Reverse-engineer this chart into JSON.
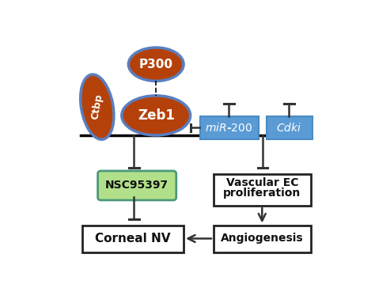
{
  "bg_color": "#ffffff",
  "ellipse_color": "#b5410a",
  "ellipse_edge_color": "#5a7fc0",
  "ellipse_edge_width": 2.5,
  "box_blue_color": "#5a9bd5",
  "box_blue_edge": "#4a8bc5",
  "nsc_fill": "#b2e08a",
  "nsc_edge": "#4a9a7a",
  "box_white_fill": "#ffffff",
  "box_white_edge": "#222222",
  "line_color": "#333333",
  "arrow_color": "#333333",
  "text_white": "#ffffff",
  "text_dark": "#111111",
  "mir200_label": "miR-200",
  "cdki_label": "Cdki",
  "ctbp_label": "Ctbp",
  "zeb1_label": "Zeb1",
  "p300_label": "P300",
  "nsc_label": "NSC95397",
  "corneal_label": "Corneal NV",
  "vascular_line1": "Vascular EC",
  "vascular_line2": "proliferation",
  "angio_label": "Angiogenesis"
}
